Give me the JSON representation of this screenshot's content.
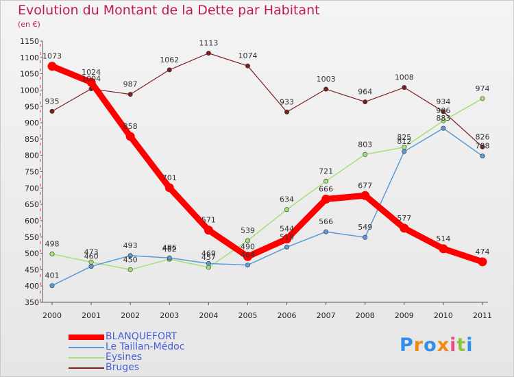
{
  "chart_data": {
    "type": "line",
    "title": "Evolution du Montant de la Dette par Habitant",
    "subtitle": "(en €)",
    "xlabel": "",
    "ylabel": "",
    "x": [
      "2000",
      "2001",
      "2002",
      "2003",
      "2004",
      "2005",
      "2006",
      "2007",
      "2008",
      "2009",
      "2010",
      "2011"
    ],
    "ylim": [
      350,
      1150
    ],
    "yticks": [
      350,
      400,
      450,
      500,
      550,
      600,
      650,
      700,
      750,
      800,
      850,
      900,
      950,
      1000,
      1050,
      1100,
      1150
    ],
    "grid": false,
    "legend_position": "bottom-left",
    "series": [
      {
        "name": "BLANQUEFORT",
        "color": "#ff0000",
        "values": [
          1073,
          1024,
          858,
          701,
          571,
          490,
          544,
          666,
          677,
          577,
          514,
          474
        ],
        "labels": [
          "1073",
          "1024",
          "858",
          "701",
          "571",
          "490",
          "544",
          "666",
          "677",
          "577",
          "514",
          "474"
        ]
      },
      {
        "name": "Le Taillan-Médoc",
        "color": "#5b9bd5",
        "values": [
          401,
          460,
          493,
          486,
          469,
          464,
          519,
          566,
          549,
          812,
          883,
          798
        ],
        "labels": [
          "401",
          "460",
          "493",
          "486",
          "469",
          "464",
          "519",
          "566",
          "549",
          "812",
          "883",
          "798"
        ]
      },
      {
        "name": "Eysines",
        "color": "#a6e07a",
        "values": [
          498,
          473,
          450,
          482,
          457,
          539,
          634,
          721,
          803,
          825,
          906,
          974
        ],
        "labels": [
          "498",
          "473",
          "450",
          "482",
          "457",
          "539",
          "634",
          "721",
          "803",
          "825",
          "906",
          "974"
        ]
      },
      {
        "name": "Bruges",
        "color": "#7b2020",
        "values": [
          935,
          1004,
          987,
          1062,
          1113,
          1074,
          933,
          1003,
          964,
          1008,
          934,
          826
        ],
        "labels": [
          "935",
          "1004",
          "987",
          "1062",
          "1113",
          "1074",
          "933",
          "1003",
          "964",
          "1008",
          "934",
          "826"
        ]
      }
    ]
  },
  "branding": {
    "logo_text": "Proxiti",
    "logo_colors": [
      "#2e8ee8",
      "#f08a12",
      "#2e8ee8",
      "#f08a12",
      "#e84a8a",
      "#8cc63f",
      "#2e8ee8"
    ]
  }
}
